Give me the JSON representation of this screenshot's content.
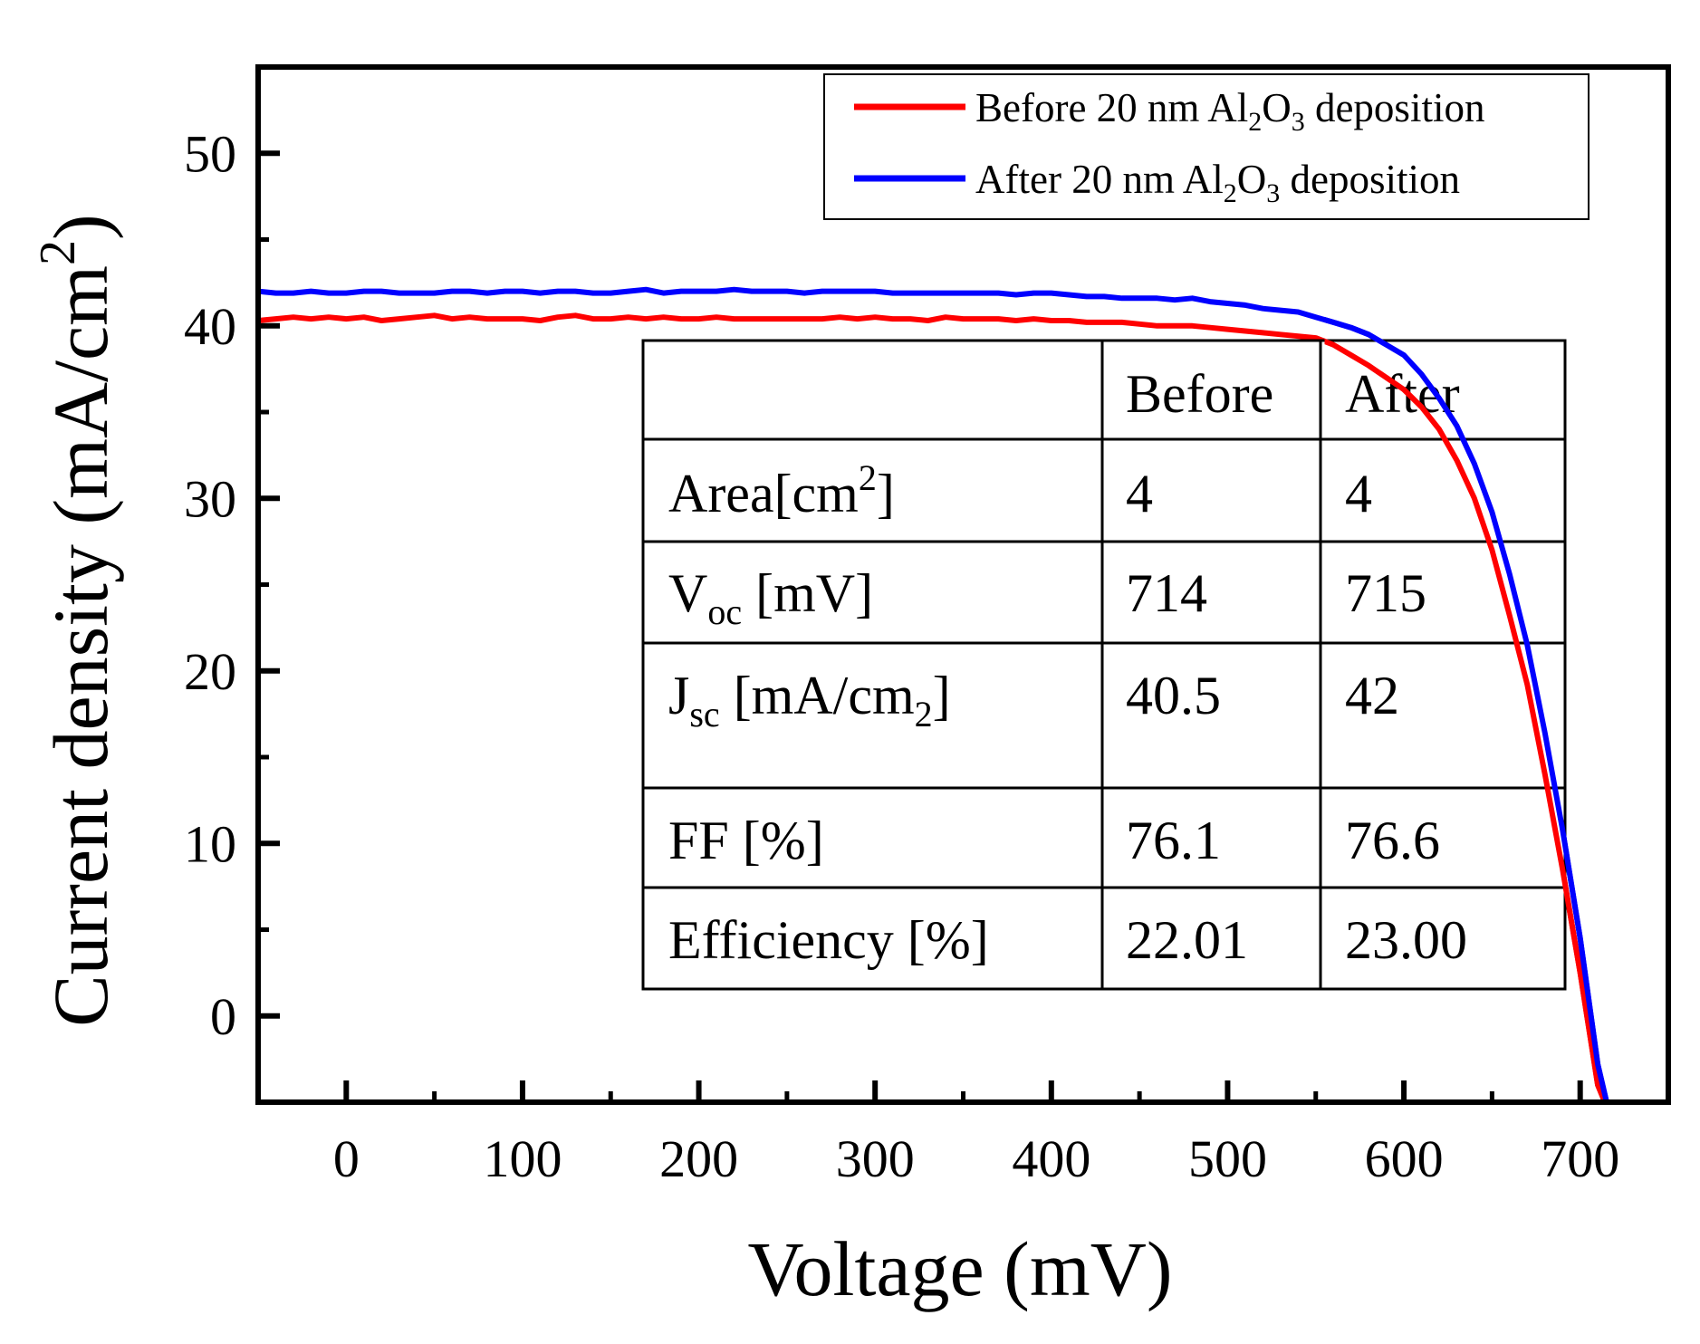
{
  "chart_data": {
    "type": "line",
    "title": "",
    "xlabel": "Voltage (mV)",
    "ylabel": "Current density (mA/cm²)",
    "ylabel_parts": {
      "base": "Current density (mA/cm",
      "sup": "2",
      "tail": ")"
    },
    "xlim": [
      -50,
      750
    ],
    "ylim": [
      -5,
      55
    ],
    "xticks": [
      0,
      100,
      200,
      300,
      400,
      500,
      600,
      700
    ],
    "xtick_labels": [
      "0",
      "100",
      "200",
      "300",
      "400",
      "500",
      "600",
      "700"
    ],
    "yticks": [
      0,
      10,
      20,
      30,
      40,
      50
    ],
    "ytick_labels": [
      "0",
      "10",
      "20",
      "30",
      "40",
      "50"
    ],
    "grid": false,
    "legend_position": "top-right",
    "series": [
      {
        "name": "Before 20 nm Al2O3 deposition",
        "label_parts": {
          "pre": "Before 20 nm Al",
          "sub1": "2",
          "mid": "O",
          "sub2": "3",
          "post": " deposition"
        },
        "color": "#ff0000",
        "x": [
          -50,
          -40,
          -30,
          -20,
          -10,
          0,
          10,
          20,
          30,
          40,
          50,
          60,
          70,
          80,
          90,
          100,
          110,
          120,
          130,
          140,
          150,
          160,
          170,
          180,
          190,
          200,
          210,
          220,
          230,
          240,
          250,
          260,
          270,
          280,
          290,
          300,
          310,
          320,
          330,
          340,
          350,
          360,
          370,
          380,
          390,
          400,
          410,
          420,
          430,
          440,
          450,
          460,
          470,
          480,
          490,
          500,
          510,
          520,
          530,
          540,
          550,
          560,
          570,
          580,
          590,
          600,
          610,
          620,
          630,
          640,
          650,
          660,
          670,
          680,
          690,
          700,
          710,
          714,
          720
        ],
        "y": [
          40.3,
          40.4,
          40.5,
          40.4,
          40.5,
          40.4,
          40.5,
          40.3,
          40.4,
          40.5,
          40.6,
          40.4,
          40.5,
          40.4,
          40.4,
          40.4,
          40.3,
          40.5,
          40.6,
          40.4,
          40.4,
          40.5,
          40.4,
          40.5,
          40.4,
          40.4,
          40.5,
          40.4,
          40.4,
          40.4,
          40.4,
          40.4,
          40.4,
          40.5,
          40.4,
          40.5,
          40.4,
          40.4,
          40.3,
          40.5,
          40.4,
          40.4,
          40.4,
          40.3,
          40.4,
          40.3,
          40.3,
          40.2,
          40.2,
          40.2,
          40.1,
          40.0,
          40.0,
          40.0,
          39.9,
          39.8,
          39.7,
          39.6,
          39.5,
          39.4,
          39.3,
          38.9,
          38.3,
          37.7,
          37.0,
          36.3,
          35.3,
          34.0,
          32.2,
          30.0,
          27.0,
          23.2,
          19.2,
          14.0,
          8.5,
          2.5,
          -4.0,
          -5.0,
          -5.0
        ]
      },
      {
        "name": "After 20 nm Al2O3 deposition",
        "label_parts": {
          "pre": "After 20 nm Al",
          "sub1": "2",
          "mid": "O",
          "sub2": "3",
          "post": " deposition"
        },
        "color": "#0000ff",
        "x": [
          -50,
          -40,
          -30,
          -20,
          -10,
          0,
          10,
          20,
          30,
          40,
          50,
          60,
          70,
          80,
          90,
          100,
          110,
          120,
          130,
          140,
          150,
          160,
          170,
          180,
          190,
          200,
          210,
          220,
          230,
          240,
          250,
          260,
          270,
          280,
          290,
          300,
          310,
          320,
          330,
          340,
          350,
          360,
          370,
          380,
          390,
          400,
          410,
          420,
          430,
          440,
          450,
          460,
          470,
          480,
          490,
          500,
          510,
          520,
          530,
          540,
          550,
          560,
          570,
          580,
          590,
          600,
          610,
          620,
          630,
          640,
          650,
          660,
          670,
          680,
          690,
          700,
          710,
          715,
          720
        ],
        "y": [
          42.0,
          41.9,
          41.9,
          42.0,
          41.9,
          41.9,
          42.0,
          42.0,
          41.9,
          41.9,
          41.9,
          42.0,
          42.0,
          41.9,
          42.0,
          42.0,
          41.9,
          42.0,
          42.0,
          41.9,
          41.9,
          42.0,
          42.1,
          41.9,
          42.0,
          42.0,
          42.0,
          42.1,
          42.0,
          42.0,
          42.0,
          41.9,
          42.0,
          42.0,
          42.0,
          42.0,
          41.9,
          41.9,
          41.9,
          41.9,
          41.9,
          41.9,
          41.9,
          41.8,
          41.9,
          41.9,
          41.8,
          41.7,
          41.7,
          41.6,
          41.6,
          41.6,
          41.5,
          41.6,
          41.4,
          41.3,
          41.2,
          41.0,
          40.9,
          40.8,
          40.5,
          40.2,
          39.9,
          39.5,
          38.9,
          38.3,
          37.2,
          35.8,
          34.2,
          32.0,
          29.2,
          25.6,
          21.5,
          16.4,
          10.8,
          4.5,
          -2.8,
          -5.0,
          -5.0
        ]
      }
    ],
    "table": {
      "header": [
        "",
        "Before",
        "After"
      ],
      "rows": [
        {
          "param_base": "Area[cm",
          "param_sup": "2",
          "param_sub": "",
          "param_tail": "]",
          "before": "4",
          "after": "4"
        },
        {
          "param_base": "V",
          "param_sup": "",
          "param_sub": "oc",
          "param_tail": " [mV]",
          "before": "714",
          "after": "715"
        },
        {
          "param_base": "J",
          "param_sup": "",
          "param_sub": "sc",
          "param_tail": " [mA/cm",
          "param_sub2": "2",
          "param_tail2": "]",
          "before": "40.5",
          "after": "42"
        },
        {
          "param_base": "FF [%]",
          "param_sup": "",
          "param_sub": "",
          "param_tail": "",
          "before": "76.1",
          "after": "76.6"
        },
        {
          "param_base": "Efficiency [%]",
          "param_sup": "",
          "param_sub": "",
          "param_tail": "",
          "before": "22.01",
          "after": "23.00"
        }
      ]
    }
  }
}
